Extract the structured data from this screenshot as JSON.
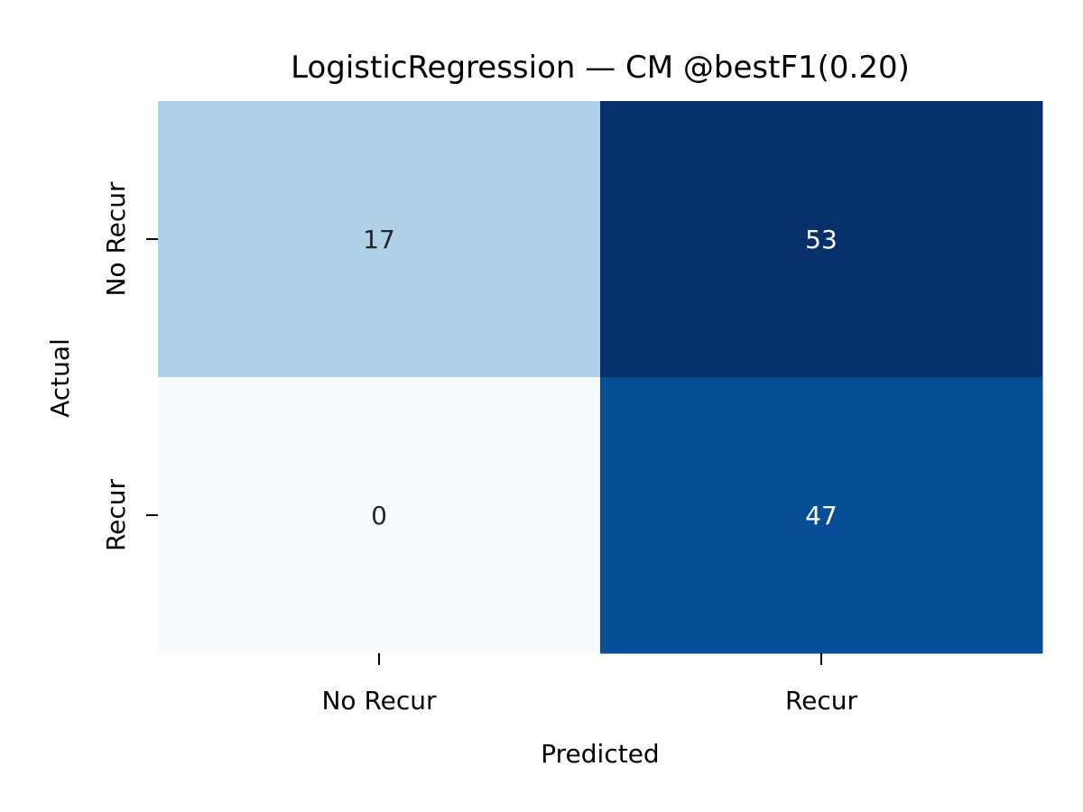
{
  "chart_data": {
    "type": "heatmap",
    "title": "LogisticRegression — CM @bestF1(0.20)",
    "xlabel": "Predicted",
    "ylabel": "Actual",
    "x_categories": [
      "No Recur",
      "Recur"
    ],
    "y_categories": [
      "No Recur",
      "Recur"
    ],
    "values": [
      [
        17,
        53
      ],
      [
        0,
        47
      ]
    ],
    "colormap": "Blues",
    "colorbar": false,
    "value_range": [
      0,
      53
    ],
    "colors": {
      "low": "#f7fbff",
      "high": "#08306b",
      "dark_text": "#262626",
      "light_text": "#ffffff"
    }
  }
}
